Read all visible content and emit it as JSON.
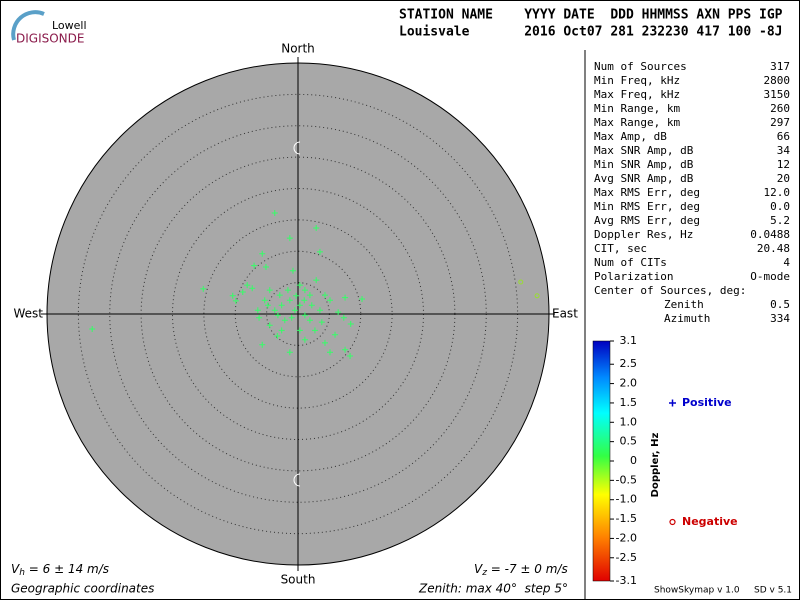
{
  "header": {
    "logo_top": "Lowell",
    "logo_bottom": "DIGISONDE",
    "line1": "STATION NAME    YYYY DATE  DDD HHMMSS AXN PPS IGP",
    "line2": "Louisvale       2016 Oct07 281 232230 417 100 -8J"
  },
  "stats": [
    [
      "Num of Sources",
      "317"
    ],
    [
      "Min Freq, kHz",
      "2800"
    ],
    [
      "Max Freq, kHz",
      "3150"
    ],
    [
      "Min Range, km",
      "260"
    ],
    [
      "Max Range, km",
      "297"
    ],
    [
      "Max Amp, dB",
      "66"
    ],
    [
      "Max SNR Amp, dB",
      "34"
    ],
    [
      "Min SNR Amp, dB",
      "12"
    ],
    [
      "Avg SNR Amp, dB",
      "20"
    ],
    [
      "Max RMS Err, deg",
      "12.0"
    ],
    [
      "Min RMS Err, deg",
      "0.0"
    ],
    [
      "Avg RMS Err, deg",
      "5.2"
    ],
    [
      "Doppler Res, Hz",
      "0.0488"
    ],
    [
      "CIT, sec",
      "20.48"
    ],
    [
      "Num of CITs",
      "4"
    ],
    [
      "Polarization",
      "O-mode"
    ]
  ],
  "center": {
    "title": "Center of Sources, deg:",
    "rows": [
      [
        "Zenith",
        "0.5"
      ],
      [
        "Azimuth",
        "334"
      ]
    ]
  },
  "footer": {
    "vh": {
      "symbol": "V",
      "sub": "h",
      "text": " = 6 ± 14 m/s"
    },
    "vz": {
      "symbol": "V",
      "sub": "z",
      "text": " = -7 ± 0 m/s"
    },
    "coords": "Geographic coordinates",
    "zenith": "Zenith: max 40°  step 5°",
    "program": "ShowSkymap v 1.0",
    "version": "SD v 5.1"
  },
  "chart_data": {
    "type": "polar-scatter",
    "directions": {
      "north": "North",
      "south": "South",
      "east": "East",
      "west": "West"
    },
    "rlim": [
      0,
      40
    ],
    "rticks": [
      5,
      10,
      15,
      20,
      25,
      30,
      35
    ],
    "background": "#a8a8a8",
    "series": [
      {
        "name": "Positive",
        "marker": "+",
        "color": "#33ff66",
        "text_color": "#0000cc",
        "x": [
          -3.7,
          -5.7,
          -5.1,
          2.9,
          -1.3,
          -7.0,
          -15.1,
          -8.1,
          -10.4,
          -8.8,
          -7.3,
          -9.9,
          -32.8,
          3.5,
          -0.8,
          2.9,
          1.1,
          5.1,
          7.5,
          10.2,
          7.3,
          8.4,
          7.5,
          8.3,
          5.1,
          4.3,
          -1.3,
          -5.7,
          -3.3,
          -6.2,
          -5.3,
          -4.5,
          -2.9,
          -1.3,
          -0.5,
          0.3,
          1.1,
          -2.1,
          1.9,
          3.5,
          -3.7,
          -4.8,
          0.3,
          2.7,
          5.9,
          -1.6,
          0.3,
          1.9,
          4.3,
          -2.6,
          -0.3,
          1.0,
          -1.0,
          -3.2,
          2.2,
          3.8,
          6.4,
          -6.4,
          -4.5,
          -2.6,
          1.1
        ],
        "y": [
          16.1,
          9.6,
          7.5,
          13.7,
          12.1,
          7.7,
          4.0,
          4.6,
          2.9,
          3.5,
          4.1,
          2.1,
          -2.4,
          9.9,
          6.9,
          5.4,
          3.8,
          2.2,
          2.6,
          2.4,
          -0.6,
          -1.6,
          -5.7,
          -6.7,
          -6.1,
          -4.6,
          -6.1,
          -4.9,
          -3.5,
          -0.6,
          2.2,
          3.8,
          3.0,
          2.2,
          0.6,
          1.4,
          -0.2,
          -1.0,
          -1.0,
          0.6,
          0.6,
          1.4,
          -2.6,
          -2.6,
          -3.3,
          3.8,
          4.6,
          3.0,
          3.0,
          1.4,
          2.9,
          2.2,
          -0.6,
          -0.2,
          1.4,
          -1.3,
          0.3,
          0.6,
          -1.8,
          -2.6,
          -4.1
        ]
      },
      {
        "name": "Negative",
        "marker": "o",
        "color": "#99dd33",
        "text_color": "#cc0000",
        "x": [
          35.5,
          38.1
        ],
        "y": [
          5.1,
          2.9
        ]
      }
    ],
    "colorbar": {
      "label": "Doppler, Hz",
      "lim": [
        -3.1,
        3.1
      ],
      "ticks": [
        3.1,
        2.5,
        {
          "value": 2,
          "label": "2.0"
        },
        1.5,
        {
          "value": 1,
          "label": "1.0"
        },
        0.5,
        0,
        -0.5,
        {
          "value": -1,
          "label": "-1.0"
        },
        -1.5,
        {
          "value": -2,
          "label": "-2.0"
        },
        -2.5,
        -3.1
      ]
    }
  }
}
